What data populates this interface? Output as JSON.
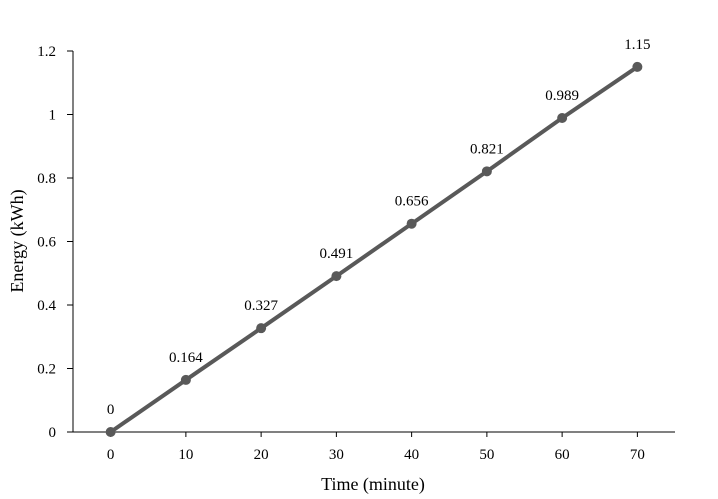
{
  "chart_data": {
    "type": "line",
    "title": "",
    "xlabel": "Time (minute)",
    "ylabel": "Energy (kWh)",
    "x": [
      0,
      10,
      20,
      30,
      40,
      50,
      60,
      70
    ],
    "series": [
      {
        "values": [
          0,
          0.164,
          0.327,
          0.491,
          0.656,
          0.821,
          0.989,
          1.15
        ],
        "labels": [
          "0",
          "0.164",
          "0.327",
          "0.491",
          "0.656",
          "0.821",
          "0.989",
          "1.15"
        ],
        "color": "#595959"
      }
    ],
    "x_ticks": [
      "0",
      "10",
      "20",
      "30",
      "40",
      "50",
      "60",
      "70"
    ],
    "y_ticks": [
      "0",
      "0.2",
      "0.4",
      "0.6",
      "0.8",
      "1",
      "1.2"
    ],
    "ylim": [
      0,
      1.2
    ],
    "grid": false,
    "legend": "none"
  }
}
